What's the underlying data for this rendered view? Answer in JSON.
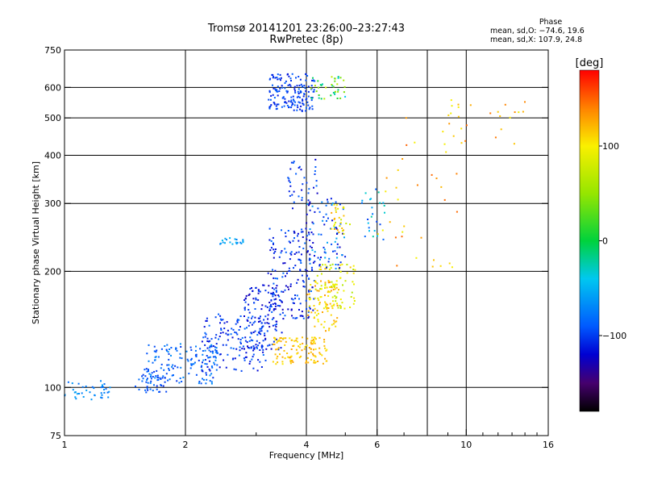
{
  "chart_data": {
    "type": "scatter",
    "title": "Tromsø 20141201 23:26:00–23:27:43",
    "subtitle": "RwPretec (8p)",
    "xlabel": "Frequency [MHz]",
    "ylabel": "Stationary phase Virtual Height [km]",
    "x_scale": "log",
    "y_scale": "log",
    "xlim": [
      1,
      16
    ],
    "ylim": [
      75,
      750
    ],
    "x_ticks": [
      1,
      2,
      4,
      6,
      10,
      16
    ],
    "x_gridlines": [
      2,
      4,
      6,
      8,
      10
    ],
    "y_ticks": [
      75,
      100,
      200,
      300,
      400,
      500,
      600,
      750
    ],
    "y_gridlines": [
      100,
      200,
      300,
      400,
      500,
      600
    ],
    "grid": true,
    "phase_stats": {
      "heading": "Phase",
      "line_o": "mean, sd,O: −74.6, 19.6",
      "line_x": "mean, sd,X: 107.9, 24.8"
    },
    "colorbar": {
      "label": "[deg]",
      "range": [
        -180,
        180
      ],
      "ticks": [
        {
          "value": 100,
          "label": "100"
        },
        {
          "value": 0,
          "label": "0"
        },
        {
          "value": -100,
          "label": "−100"
        }
      ]
    },
    "clusters": [
      {
        "x": [
          1.0,
          1.3
        ],
        "y": [
          92,
          104
        ],
        "phase": -70,
        "spread": 15,
        "count": 40
      },
      {
        "x": [
          1.5,
          1.8
        ],
        "y": [
          97,
          112
        ],
        "phase": -95,
        "spread": 15,
        "count": 40
      },
      {
        "x": [
          1.6,
          2.4
        ],
        "y": [
          102,
          130
        ],
        "phase": -85,
        "spread": 20,
        "count": 140
      },
      {
        "x": [
          2.2,
          3.2
        ],
        "y": [
          110,
          155
        ],
        "phase": -100,
        "spread": 20,
        "count": 160
      },
      {
        "x": [
          2.8,
          3.5
        ],
        "y": [
          125,
          185
        ],
        "phase": -110,
        "spread": 20,
        "count": 120
      },
      {
        "x": [
          3.2,
          4.2
        ],
        "y": [
          150,
          260
        ],
        "phase": -105,
        "spread": 25,
        "count": 180
      },
      {
        "x": [
          3.3,
          4.5
        ],
        "y": [
          115,
          135
        ],
        "phase": 115,
        "spread": 15,
        "count": 120
      },
      {
        "x": [
          4.0,
          4.8
        ],
        "y": [
          140,
          190
        ],
        "phase": 110,
        "spread": 25,
        "count": 90
      },
      {
        "x": [
          4.2,
          5.3
        ],
        "y": [
          160,
          210
        ],
        "phase": 90,
        "spread": 30,
        "count": 70
      },
      {
        "x": [
          4.0,
          5.0
        ],
        "y": [
          200,
          310
        ],
        "phase": -90,
        "spread": 40,
        "count": 80
      },
      {
        "x": [
          4.6,
          5.2
        ],
        "y": [
          250,
          300
        ],
        "phase": 100,
        "spread": 30,
        "count": 30
      },
      {
        "x": [
          3.6,
          4.3
        ],
        "y": [
          280,
          390
        ],
        "phase": -105,
        "spread": 25,
        "count": 40
      },
      {
        "x": [
          2.4,
          2.8
        ],
        "y": [
          235,
          245
        ],
        "phase": -60,
        "spread": 15,
        "count": 20
      },
      {
        "x": [
          3.2,
          4.2
        ],
        "y": [
          520,
          650
        ],
        "phase": -100,
        "spread": 15,
        "count": 160
      },
      {
        "x": [
          4.1,
          5.0
        ],
        "y": [
          560,
          640
        ],
        "phase": 20,
        "spread": 60,
        "count": 40
      },
      {
        "x": [
          5.5,
          6.3
        ],
        "y": [
          240,
          340
        ],
        "phase": -60,
        "spread": 40,
        "count": 25
      },
      {
        "x": [
          6.0,
          9.5
        ],
        "y": [
          200,
          560
        ],
        "phase": 120,
        "spread": 30,
        "count": 35
      },
      {
        "x": [
          9.0,
          14.0
        ],
        "y": [
          420,
          560
        ],
        "phase": 120,
        "spread": 30,
        "count": 25
      }
    ]
  }
}
